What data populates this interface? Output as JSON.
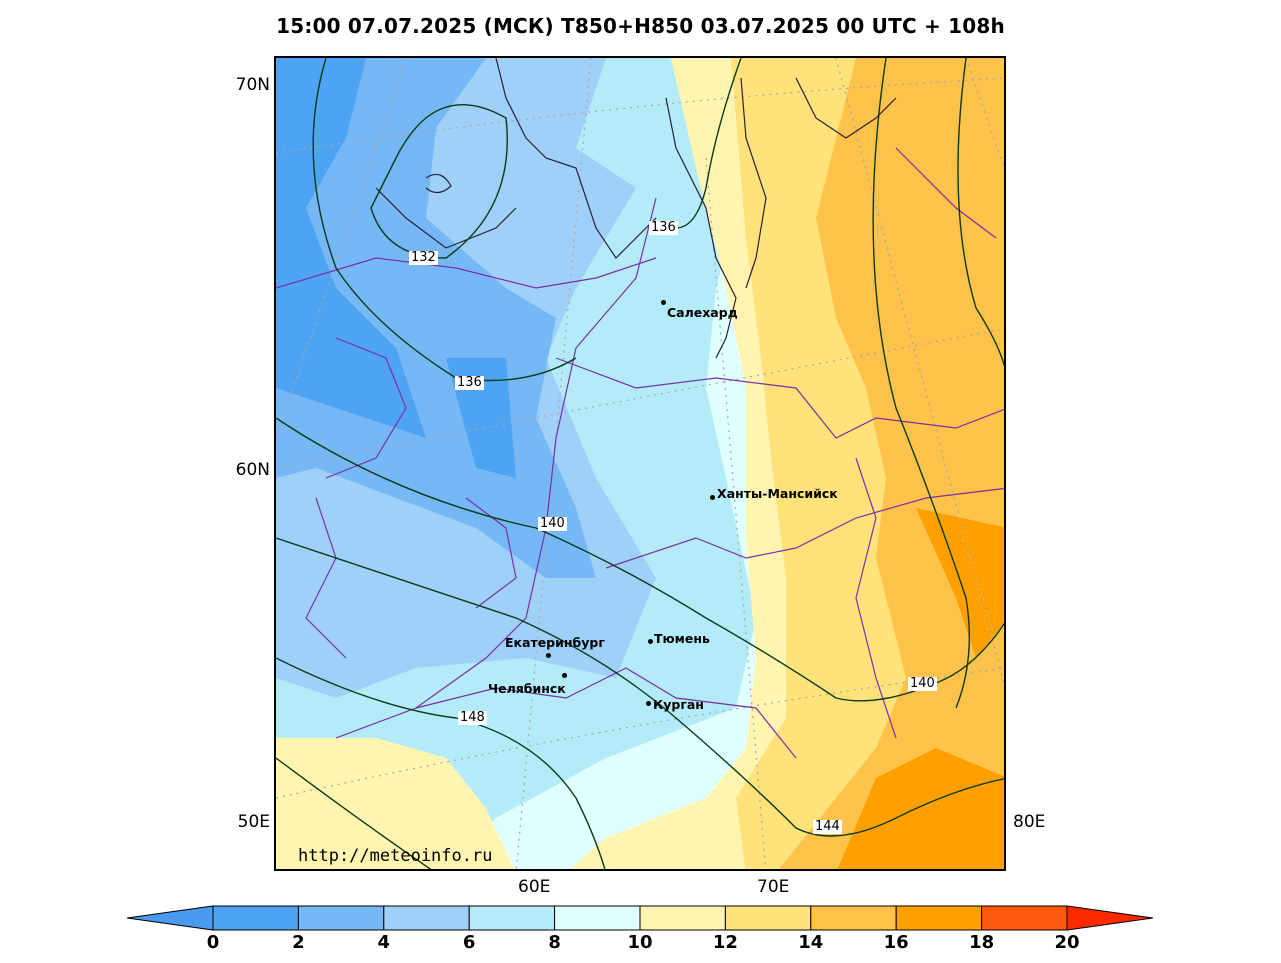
{
  "title": "15:00 07.07.2025 (МСК) T850+H850 03.07.2025 00 UTC + 108h",
  "lat_labels": [
    "70N",
    "60N",
    "50E"
  ],
  "lon_labels": [
    "60E",
    "70E",
    "80E"
  ],
  "cities": [
    {
      "name": "Салехард"
    },
    {
      "name": "Ханты-Мансийск"
    },
    {
      "name": "Екатеринбург"
    },
    {
      "name": "Тюмень"
    },
    {
      "name": "Челябинск"
    },
    {
      "name": "Курган"
    }
  ],
  "contour_labels": [
    "132",
    "136",
    "136",
    "140",
    "148",
    "140",
    "144"
  ],
  "watermark": "http://meteoinfo.ru",
  "colorbar": {
    "ticks": [
      "0",
      "2",
      "4",
      "6",
      "8",
      "10",
      "12",
      "14",
      "16",
      "18",
      "20"
    ],
    "colors": [
      "#4a9af0",
      "#4ea3f2",
      "#76b8f5",
      "#9fd0f8",
      "#b3ecf8",
      "#e0ffff",
      "#fff5b0",
      "#ffe27a",
      "#ffc24a",
      "#ffa000",
      "#ff5a10",
      "#ff2a00"
    ]
  }
}
